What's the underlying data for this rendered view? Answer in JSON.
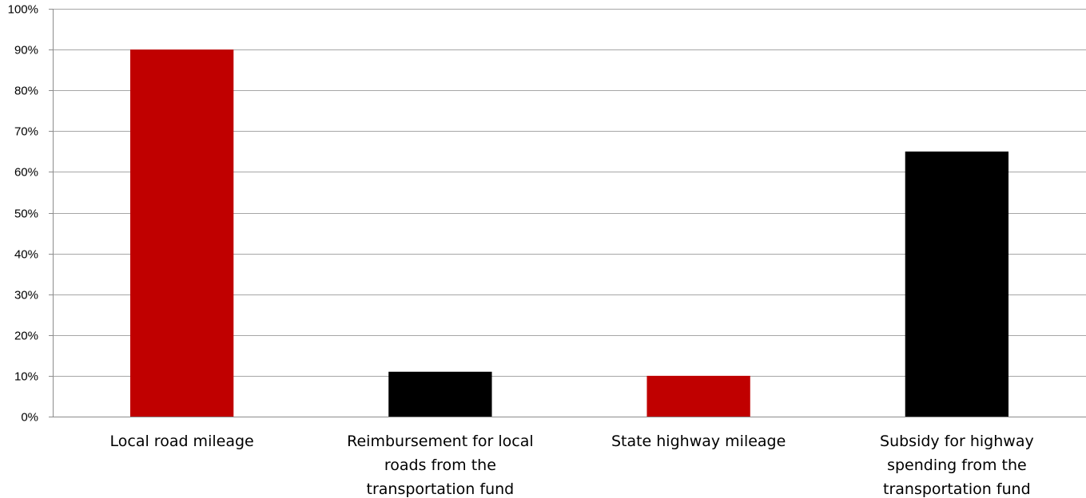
{
  "chart_data": {
    "type": "bar",
    "title": "",
    "xlabel": "",
    "ylabel": "",
    "categories": [
      [
        "Local road mileage"
      ],
      [
        "Reimbursement for local",
        "roads from the",
        "transportation fund"
      ],
      [
        "State highway mileage"
      ],
      [
        "Subsidy for highway",
        "spending from the",
        "transportation fund"
      ]
    ],
    "values": [
      0.9,
      0.11,
      0.1,
      0.65
    ],
    "bar_colors": [
      "#c00000",
      "#000000",
      "#c00000",
      "#000000"
    ],
    "ylim": [
      0,
      1.0
    ],
    "yticks": [
      0,
      0.1,
      0.2,
      0.3,
      0.4,
      0.5,
      0.6,
      0.7,
      0.8,
      0.9,
      1.0
    ],
    "ytick_labels": [
      "0%",
      "10%",
      "20%",
      "30%",
      "40%",
      "50%",
      "60%",
      "70%",
      "80%",
      "90%",
      "100%"
    ],
    "grid": true,
    "legend": "none"
  },
  "colors": {
    "gridline": "#a6a6a6",
    "axis": "#8c8c8c"
  }
}
